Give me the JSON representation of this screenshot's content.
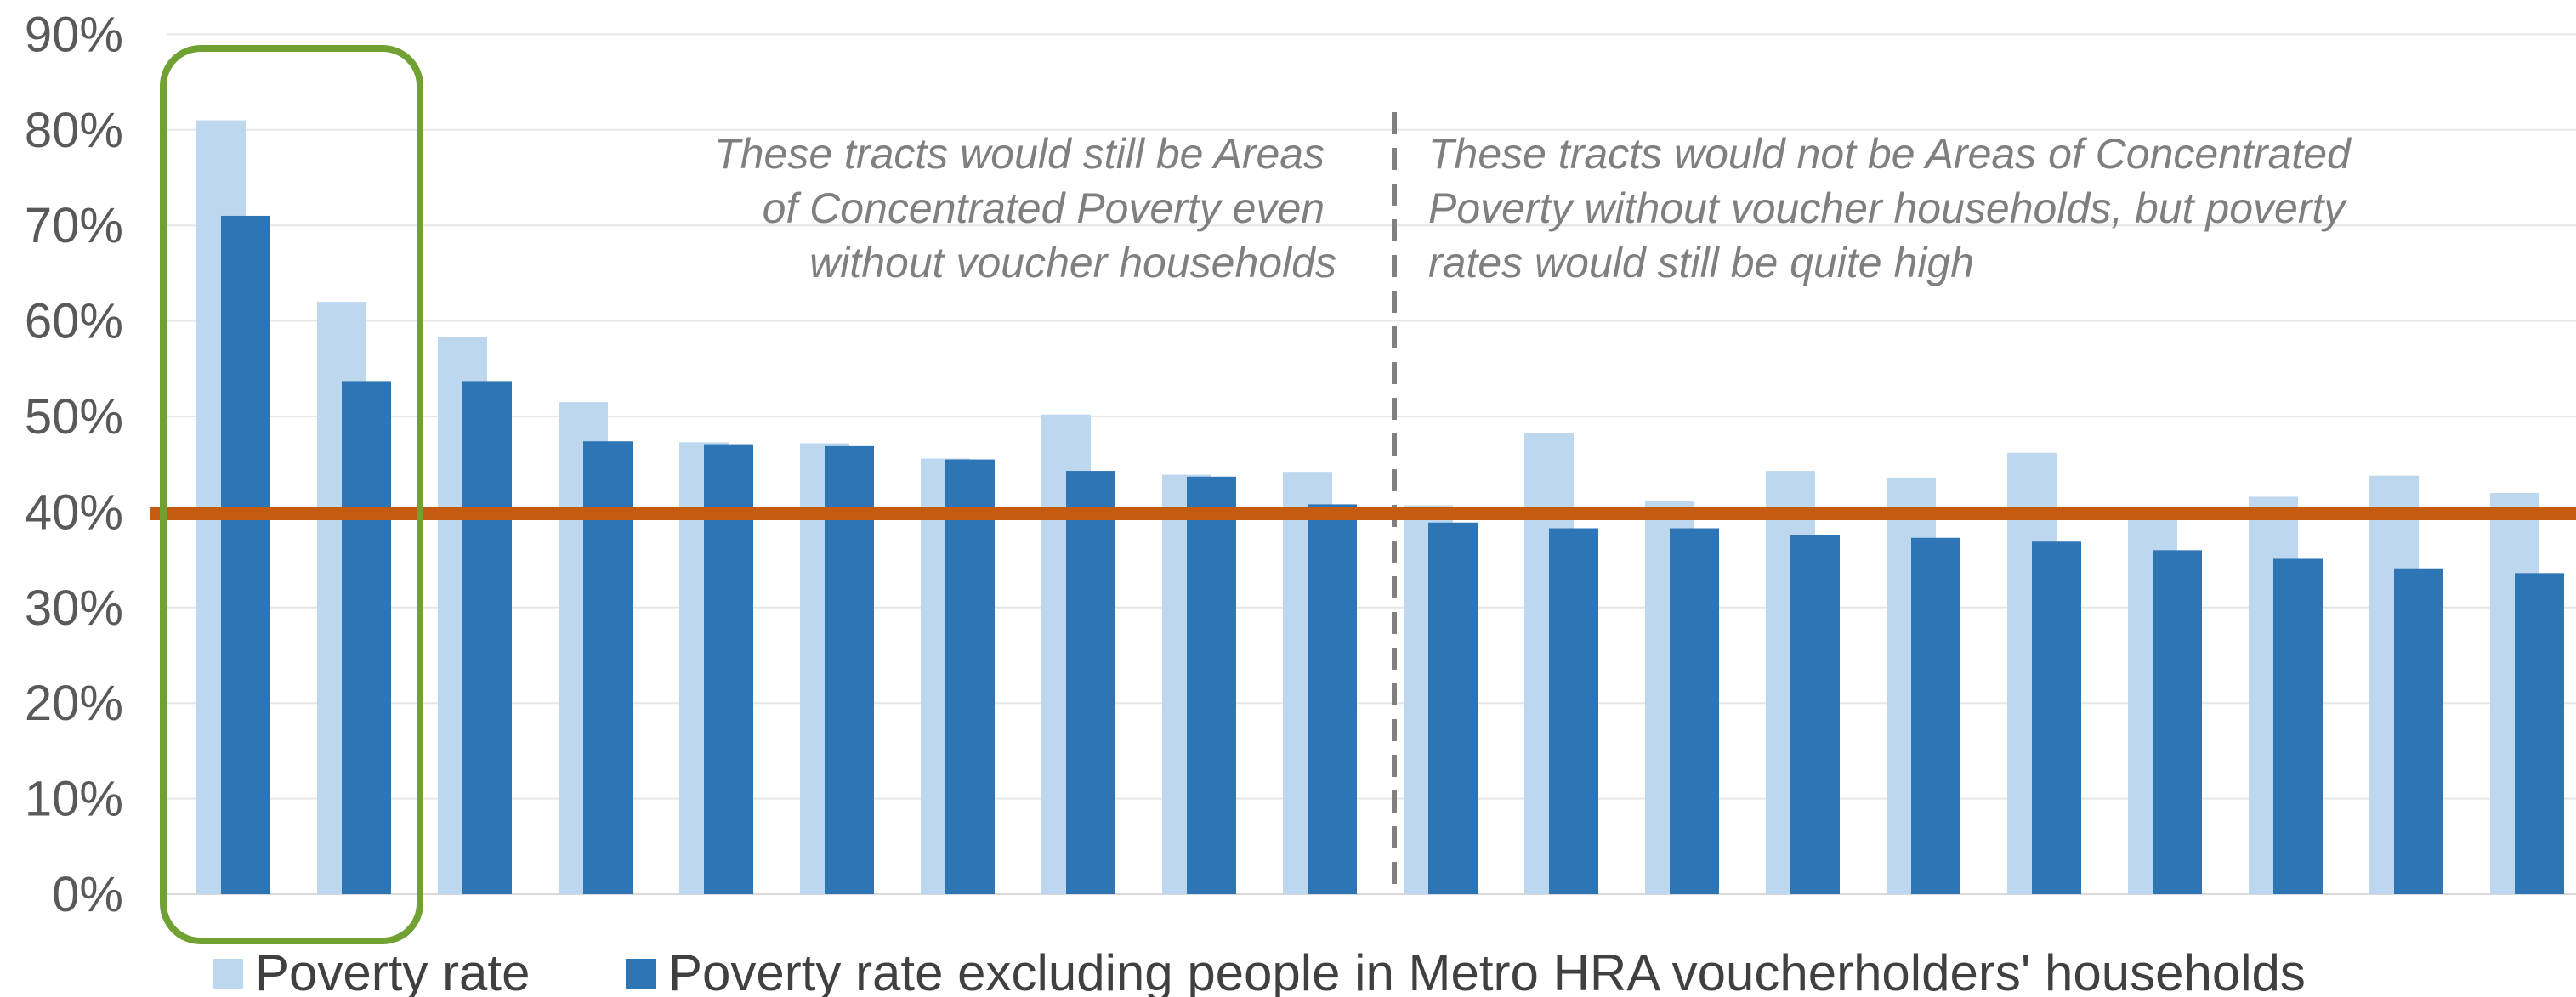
{
  "chart_data": {
    "type": "bar",
    "ylim": [
      0,
      90
    ],
    "y_ticks": [
      "0%",
      "10%",
      "20%",
      "30%",
      "40%",
      "50%",
      "60%",
      "70%",
      "80%",
      "90%"
    ],
    "grid": true,
    "series": [
      {
        "name": "Poverty rate",
        "color": "#bdd7ee",
        "values": [
          81,
          62,
          58.3,
          51.5,
          47.3,
          47.2,
          45.6,
          50.2,
          43.9,
          44.2,
          40.7,
          48.3,
          41.1,
          44.3,
          43.6,
          46.2,
          39.5,
          41.6,
          43.8,
          42
        ]
      },
      {
        "name": "Poverty rate excluding people in Metro HRA voucherholders' households",
        "color": "#2e75b6",
        "values": [
          71,
          53.7,
          53.7,
          47.4,
          47.1,
          46.9,
          45.5,
          44.3,
          43.7,
          40.8,
          38.9,
          38.3,
          38.3,
          37.6,
          37.3,
          36.9,
          36,
          35.1,
          34.1,
          33.6
        ]
      }
    ],
    "threshold": {
      "value": 39.5,
      "color": "#c55a11"
    },
    "divider_after_index": 9,
    "highlight": {
      "from_index": 0,
      "to_index": 1,
      "color": "#70a132"
    },
    "annotations": {
      "left": [
        "These tracts would still be Areas",
        "of Concentrated Poverty even",
        "without voucher households"
      ],
      "right": [
        "These tracts would not be Areas of Concentrated",
        "Poverty without voucher households, but poverty",
        "rates would still be quite high"
      ]
    },
    "legend": {
      "position": "bottom",
      "items": [
        "Poverty rate",
        "Poverty rate excluding people in Metro HRA voucherholders' households"
      ]
    }
  }
}
